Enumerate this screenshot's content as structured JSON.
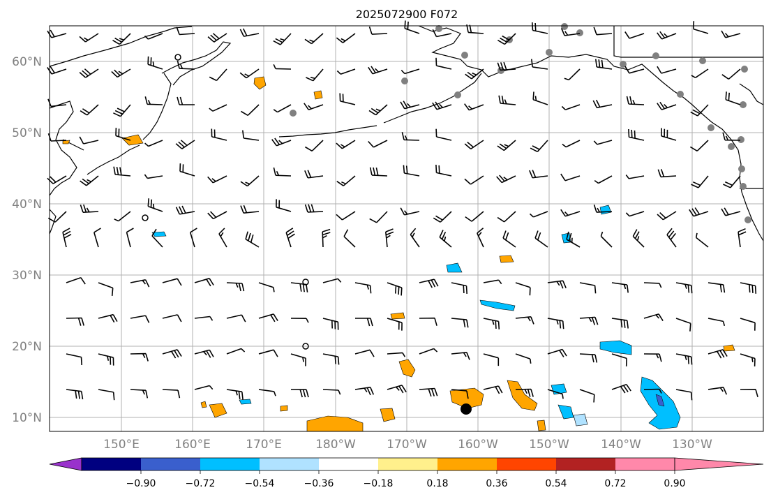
{
  "map": {
    "title": "2025072900 F072",
    "lat_labels": [
      "60°N",
      "50°N",
      "40°N",
      "30°N",
      "20°N",
      "10°N"
    ],
    "lon_labels": [
      "150°E",
      "160°E",
      "170°E",
      "180°W",
      "170°W",
      "160°W",
      "150°W",
      "140°W",
      "130°W"
    ],
    "extent": {
      "lon_min": 140,
      "lon_max": 240,
      "lat_min": 8,
      "lat_max": 65
    }
  },
  "colorbar": {
    "tick_labels": [
      "−0.90",
      "−0.72",
      "−0.54",
      "−0.36",
      "−0.18",
      "0.18",
      "0.36",
      "0.54",
      "0.72",
      "0.90"
    ],
    "colors": [
      "#9932cc",
      "#000080",
      "#3a5fcd",
      "#00bfff",
      "#b0e2ff",
      "#ffffff",
      "#fff08c",
      "#ffa500",
      "#ff4500",
      "#b22222",
      "#ff88aa"
    ]
  }
}
